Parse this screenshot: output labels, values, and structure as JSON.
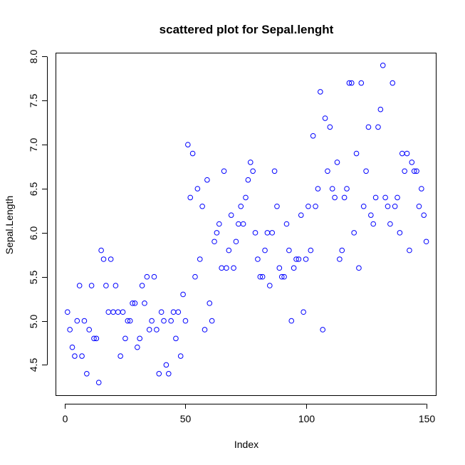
{
  "chart_data": {
    "type": "scatter",
    "title": "scattered plot for Sepal.lenght",
    "xlabel": "Index",
    "ylabel": "Sepal.Length",
    "xlim": [
      -3.96,
      153.96
    ],
    "ylim": [
      4.156,
      8.044
    ],
    "xticks": [
      0,
      50,
      100,
      150
    ],
    "yticks": [
      4.5,
      5.0,
      5.5,
      6.0,
      6.5,
      7.0,
      7.5,
      8.0
    ],
    "xtick_labels": [
      "0",
      "50",
      "100",
      "150"
    ],
    "ytick_labels": [
      "4.5",
      "5.0",
      "5.5",
      "6.0",
      "6.5",
      "7.0",
      "7.5",
      "8.0"
    ],
    "point_color": "#0000ff",
    "grid": false,
    "series": [
      {
        "x": [
          1,
          2,
          3,
          4,
          5,
          6,
          7,
          8,
          9,
          10,
          11,
          12,
          13,
          14,
          15,
          16,
          17,
          18,
          19,
          20,
          21,
          22,
          23,
          24,
          25,
          26,
          27,
          28,
          29,
          30,
          31,
          32,
          33,
          34,
          35,
          36,
          37,
          38,
          39,
          40,
          41,
          42,
          43,
          44,
          45,
          46,
          47,
          48,
          49,
          50,
          51,
          52,
          53,
          54,
          55,
          56,
          57,
          58,
          59,
          60,
          61,
          62,
          63,
          64,
          65,
          66,
          67,
          68,
          69,
          70,
          71,
          72,
          73,
          74,
          75,
          76,
          77,
          78,
          79,
          80,
          81,
          82,
          83,
          84,
          85,
          86,
          87,
          88,
          89,
          90,
          91,
          92,
          93,
          94,
          95,
          96,
          97,
          98,
          99,
          100,
          101,
          102,
          103,
          104,
          105,
          106,
          107,
          108,
          109,
          110,
          111,
          112,
          113,
          114,
          115,
          116,
          117,
          118,
          119,
          120,
          121,
          122,
          123,
          124,
          125,
          126,
          127,
          128,
          129,
          130,
          131,
          132,
          133,
          134,
          135,
          136,
          137,
          138,
          139,
          140,
          141,
          142,
          143,
          144,
          145,
          146,
          147,
          148,
          149,
          150
        ],
        "y": [
          5.1,
          4.9,
          4.7,
          4.6,
          5.0,
          5.4,
          4.6,
          5.0,
          4.4,
          4.9,
          5.4,
          4.8,
          4.8,
          4.3,
          5.8,
          5.7,
          5.4,
          5.1,
          5.7,
          5.1,
          5.4,
          5.1,
          4.6,
          5.1,
          4.8,
          5.0,
          5.0,
          5.2,
          5.2,
          4.7,
          4.8,
          5.4,
          5.2,
          5.5,
          4.9,
          5.0,
          5.5,
          4.9,
          4.4,
          5.1,
          5.0,
          4.5,
          4.4,
          5.0,
          5.1,
          4.8,
          5.1,
          4.6,
          5.3,
          5.0,
          7.0,
          6.4,
          6.9,
          5.5,
          6.5,
          5.7,
          6.3,
          4.9,
          6.6,
          5.2,
          5.0,
          5.9,
          6.0,
          6.1,
          5.6,
          6.7,
          5.6,
          5.8,
          6.2,
          5.6,
          5.9,
          6.1,
          6.3,
          6.1,
          6.4,
          6.6,
          6.8,
          6.7,
          6.0,
          5.7,
          5.5,
          5.5,
          5.8,
          6.0,
          5.4,
          6.0,
          6.7,
          6.3,
          5.6,
          5.5,
          5.5,
          6.1,
          5.8,
          5.0,
          5.6,
          5.7,
          5.7,
          6.2,
          5.1,
          5.7,
          6.3,
          5.8,
          7.1,
          6.3,
          6.5,
          7.6,
          4.9,
          7.3,
          6.7,
          7.2,
          6.5,
          6.4,
          6.8,
          5.7,
          5.8,
          6.4,
          6.5,
          7.7,
          7.7,
          6.0,
          6.9,
          5.6,
          7.7,
          6.3,
          6.7,
          7.2,
          6.2,
          6.1,
          6.4,
          7.2,
          7.4,
          7.9,
          6.4,
          6.3,
          6.1,
          7.7,
          6.3,
          6.4,
          6.0,
          6.9,
          6.7,
          6.9,
          5.8,
          6.8,
          6.7,
          6.7,
          6.3,
          6.5,
          6.2,
          5.9
        ]
      }
    ]
  }
}
